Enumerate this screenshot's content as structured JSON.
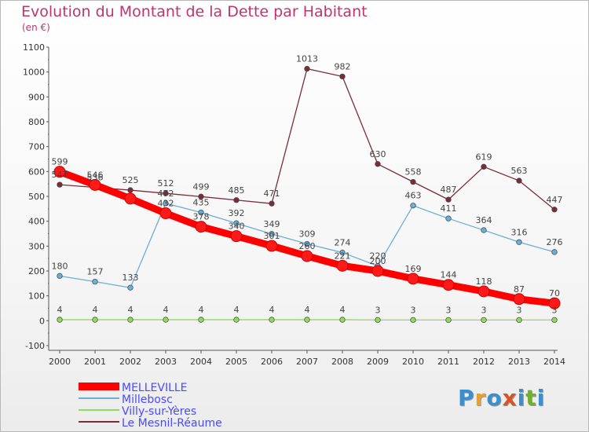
{
  "title": "Evolution du Montant de la Dette par Habitant",
  "subtitle": "(en €)",
  "logo": {
    "letters": [
      {
        "ch": "P",
        "color": "#3a8fd0"
      },
      {
        "ch": "r",
        "color": "#f0a020"
      },
      {
        "ch": "o",
        "color": "#3a8fd0"
      },
      {
        "ch": "x",
        "color": "#e05020"
      },
      {
        "ch": "i",
        "color": "#3a8fd0"
      },
      {
        "ch": "t",
        "color": "#70b030"
      },
      {
        "ch": "i",
        "color": "#3a8fd0"
      }
    ]
  },
  "chart_data": {
    "type": "line",
    "x": [
      "2000",
      "2001",
      "2002",
      "2003",
      "2004",
      "2005",
      "2006",
      "2007",
      "2008",
      "2009",
      "2010",
      "2011",
      "2012",
      "2013",
      "2014"
    ],
    "ylim": [
      -100,
      1100
    ],
    "yticks": [
      -100,
      0,
      100,
      200,
      300,
      400,
      500,
      600,
      700,
      800,
      900,
      1000,
      1100
    ],
    "grid": false,
    "legend_position": "bottom-left",
    "series": [
      {
        "name": "MELLEVILLE",
        "color": "#ff0000",
        "width": 9,
        "values": [
          599,
          546,
          491,
          432,
          378,
          340,
          301,
          260,
          221,
          200,
          169,
          144,
          118,
          87,
          70
        ],
        "labels": [
          "599",
          "546",
          "",
          "",
          "",
          "",
          "",
          "",
          "",
          "",
          "169",
          "144",
          "118",
          "87",
          "70"
        ]
      },
      {
        "name": "Millebosc",
        "color": "#6baed6",
        "width": 1.3,
        "values": [
          180,
          157,
          133,
          472,
          435,
          392,
          349,
          309,
          274,
          220,
          463,
          411,
          364,
          316,
          276
        ],
        "labels": [
          "180",
          "157",
          "133",
          "",
          "435",
          "392",
          "349",
          "309",
          "274",
          "",
          "463",
          "411",
          "364",
          "316",
          "276"
        ]
      },
      {
        "name": "Villy-sur-Yères",
        "color": "#8fdc5a",
        "width": 1.3,
        "values": [
          4,
          4,
          4,
          4,
          4,
          4,
          4,
          4,
          4,
          3,
          3,
          3,
          3,
          3,
          3
        ],
        "labels": [
          "4",
          "4",
          "4",
          "4",
          "4",
          "4",
          "4",
          "4",
          "4",
          "3",
          "3",
          "3",
          "3",
          "3",
          "3"
        ]
      },
      {
        "name": "Le Mesnil-Réaume",
        "color": "#7a2c3a",
        "width": 1.3,
        "values": [
          547,
          536,
          525,
          512,
          499,
          485,
          471,
          1013,
          982,
          630,
          558,
          487,
          619,
          563,
          447
        ],
        "labels": [
          "547",
          "536",
          "525",
          "512",
          "499",
          "485",
          "471",
          "1013",
          "982",
          "630",
          "558",
          "487",
          "619",
          "563",
          "447"
        ]
      }
    ],
    "overlap_labels": [
      {
        "x": "2003",
        "text": "432"
      },
      {
        "x": "2003",
        "text": "472"
      },
      {
        "x": "2004",
        "text": "378"
      },
      {
        "x": "2005",
        "text": "340"
      },
      {
        "x": "2006",
        "text": "301"
      },
      {
        "x": "2007",
        "text": "260"
      },
      {
        "x": "2008",
        "text": "221"
      },
      {
        "x": "2009",
        "text": "220"
      },
      {
        "x": "2009",
        "text": "200"
      }
    ]
  }
}
